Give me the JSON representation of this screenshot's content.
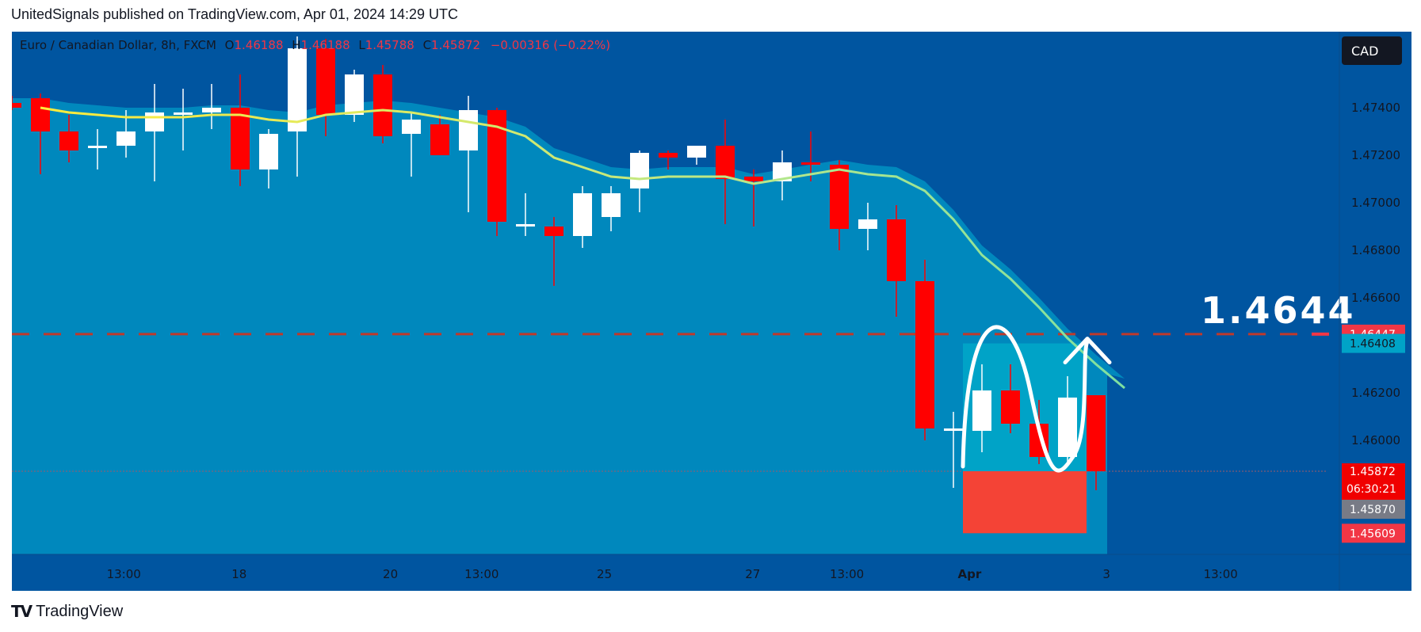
{
  "header": {
    "publish_line": "UnitedSignals published on TradingView.com, Apr 01, 2024 14:29 UTC"
  },
  "legend": {
    "symbol": "Euro  / Canadian Dollar, 8h, FXCM",
    "open_label": "O",
    "open": "1.46188",
    "high_label": "H",
    "high": "1.46188",
    "low_label": "L",
    "low": "1.45788",
    "close_label": "C",
    "close": "1.45872",
    "change": "−0.00316 (−0.22%)"
  },
  "currency_badge": "CAD",
  "target_label": "1.4644",
  "price_badges": {
    "target": "1.46447",
    "target_color": "#f23645",
    "position_top": "1.46408",
    "position_top_color": "#00a3c7",
    "last_price": "1.45872",
    "countdown": "06:30:21",
    "last_color": "#f00000",
    "entry": "1.45870",
    "entry_color": "#787b86",
    "stop": "1.45609",
    "stop_color": "#f23645"
  },
  "footer": {
    "logo_mark": "TV",
    "brand": "TradingView"
  },
  "colors": {
    "background": "#0055a0",
    "area": "#0088bd",
    "up_candle": "#ffffff",
    "down_candle": "#ff0000",
    "ma_line": "#ffeb3b",
    "target_zone": "#00a3c7",
    "stop_zone": "#f44336"
  },
  "chart_data": {
    "type": "candlestick",
    "title": "Euro  / Canadian Dollar, 8h, FXCM",
    "ylabel": "CAD",
    "ylim": [
      1.4552,
      1.4772
    ],
    "y_ticks": [
      "1.47400",
      "1.47200",
      "1.47000",
      "1.46800",
      "1.46600",
      "1.46200",
      "1.46000"
    ],
    "x_ticks": [
      "13:00",
      "18",
      "20",
      "13:00",
      "25",
      "27",
      "13:00",
      "Apr",
      "3",
      "13:00"
    ],
    "candles": [
      {
        "o": 1.4742,
        "h": 1.4745,
        "l": 1.4739,
        "c": 1.474
      },
      {
        "o": 1.4744,
        "h": 1.4746,
        "l": 1.4712,
        "c": 1.473
      },
      {
        "o": 1.473,
        "h": 1.4737,
        "l": 1.4717,
        "c": 1.4722
      },
      {
        "o": 1.4723,
        "h": 1.4731,
        "l": 1.4714,
        "c": 1.4724
      },
      {
        "o": 1.4724,
        "h": 1.4739,
        "l": 1.4719,
        "c": 1.473
      },
      {
        "o": 1.473,
        "h": 1.475,
        "l": 1.4709,
        "c": 1.4738
      },
      {
        "o": 1.4738,
        "h": 1.4748,
        "l": 1.4722,
        "c": 1.4738
      },
      {
        "o": 1.4738,
        "h": 1.475,
        "l": 1.4731,
        "c": 1.474
      },
      {
        "o": 1.474,
        "h": 1.4754,
        "l": 1.4707,
        "c": 1.4714
      },
      {
        "o": 1.4714,
        "h": 1.4731,
        "l": 1.4706,
        "c": 1.4729
      },
      {
        "o": 1.473,
        "h": 1.477,
        "l": 1.4711,
        "c": 1.4765
      },
      {
        "o": 1.4765,
        "h": 1.4769,
        "l": 1.4728,
        "c": 1.4737
      },
      {
        "o": 1.4737,
        "h": 1.4756,
        "l": 1.4734,
        "c": 1.4754
      },
      {
        "o": 1.4754,
        "h": 1.4758,
        "l": 1.4725,
        "c": 1.4728
      },
      {
        "o": 1.4729,
        "h": 1.4738,
        "l": 1.4711,
        "c": 1.4735
      },
      {
        "o": 1.4733,
        "h": 1.4737,
        "l": 1.4721,
        "c": 1.472
      },
      {
        "o": 1.4722,
        "h": 1.4745,
        "l": 1.4696,
        "c": 1.4739
      },
      {
        "o": 1.4739,
        "h": 1.474,
        "l": 1.4686,
        "c": 1.4692
      },
      {
        "o": 1.4691,
        "h": 1.4704,
        "l": 1.4686,
        "c": 1.4691
      },
      {
        "o": 1.469,
        "h": 1.4694,
        "l": 1.4665,
        "c": 1.4686
      },
      {
        "o": 1.4686,
        "h": 1.4707,
        "l": 1.4681,
        "c": 1.4704
      },
      {
        "o": 1.4694,
        "h": 1.4707,
        "l": 1.4688,
        "c": 1.4704
      },
      {
        "o": 1.4706,
        "h": 1.4722,
        "l": 1.4696,
        "c": 1.4721
      },
      {
        "o": 1.4721,
        "h": 1.4722,
        "l": 1.4714,
        "c": 1.4719
      },
      {
        "o": 1.4719,
        "h": 1.4724,
        "l": 1.4716,
        "c": 1.4724
      },
      {
        "o": 1.4724,
        "h": 1.4735,
        "l": 1.4691,
        "c": 1.471
      },
      {
        "o": 1.4711,
        "h": 1.4714,
        "l": 1.469,
        "c": 1.4709
      },
      {
        "o": 1.4709,
        "h": 1.4722,
        "l": 1.4701,
        "c": 1.4717
      },
      {
        "o": 1.4717,
        "h": 1.473,
        "l": 1.4709,
        "c": 1.4716
      },
      {
        "o": 1.4716,
        "h": 1.4718,
        "l": 1.468,
        "c": 1.4689
      },
      {
        "o": 1.4689,
        "h": 1.47,
        "l": 1.468,
        "c": 1.4693
      },
      {
        "o": 1.4693,
        "h": 1.4699,
        "l": 1.4652,
        "c": 1.4667
      },
      {
        "o": 1.4667,
        "h": 1.4676,
        "l": 1.46,
        "c": 1.4605
      },
      {
        "o": 1.4605,
        "h": 1.4612,
        "l": 1.458,
        "c": 1.4605
      },
      {
        "o": 1.4604,
        "h": 1.4632,
        "l": 1.4595,
        "c": 1.4621
      },
      {
        "o": 1.4621,
        "h": 1.4632,
        "l": 1.4603,
        "c": 1.4607
      },
      {
        "o": 1.4607,
        "h": 1.4617,
        "l": 1.459,
        "c": 1.4593
      },
      {
        "o": 1.4593,
        "h": 1.4627,
        "l": 1.459,
        "c": 1.4618
      },
      {
        "o": 1.4619,
        "h": 1.4619,
        "l": 1.4579,
        "c": 1.4587
      }
    ],
    "ma": [
      1.474,
      1.4738,
      1.4737,
      1.4736,
      1.4736,
      1.4736,
      1.4737,
      1.4737,
      1.4735,
      1.4734,
      1.4737,
      1.4738,
      1.4739,
      1.4738,
      1.4736,
      1.4734,
      1.4732,
      1.4728,
      1.4719,
      1.4715,
      1.4711,
      1.471,
      1.4711,
      1.4711,
      1.4711,
      1.4708,
      1.471,
      1.4712,
      1.4714,
      1.4712,
      1.4711,
      1.4705,
      1.4693,
      1.4678,
      1.4668,
      1.4656,
      1.4643,
      1.4632,
      1.4622
    ],
    "target_level": 1.46447,
    "position": {
      "target": 1.46408,
      "entry": 1.4587,
      "stop": 1.45609
    }
  }
}
